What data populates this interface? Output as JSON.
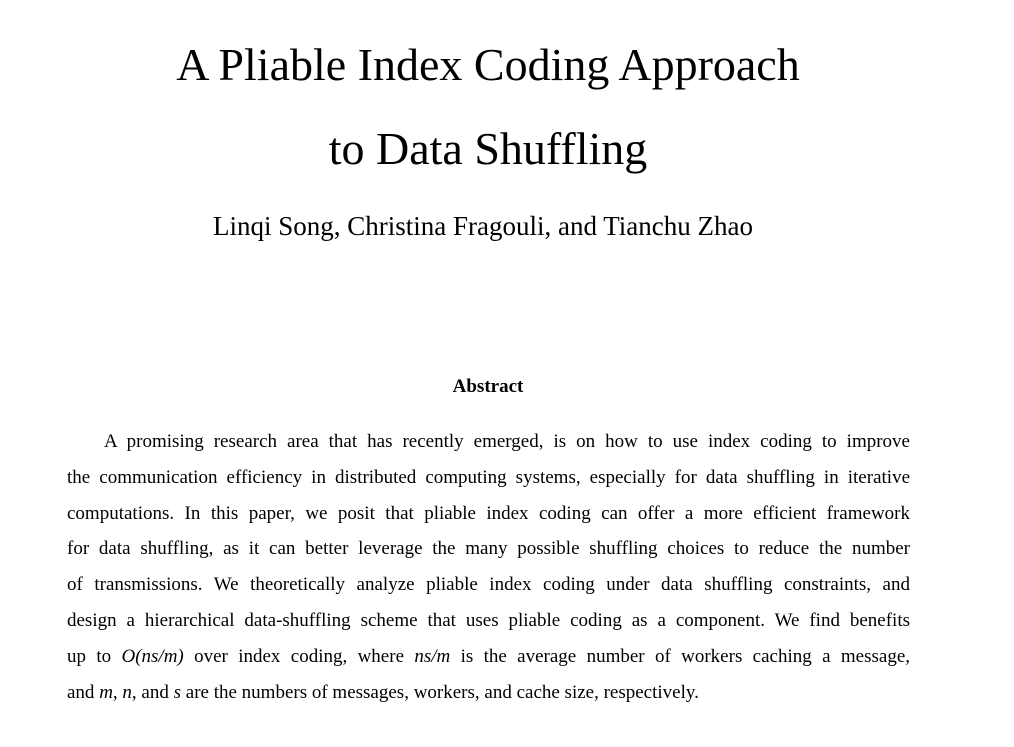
{
  "title": {
    "line1": "A Pliable Index Coding Approach",
    "line2": "to Data Shuffling"
  },
  "authors": "Linqi Song, Christina Fragouli, and Tianchu Zhao",
  "abstract": {
    "heading": "Abstract",
    "lines": [
      "A promising research area that has recently emerged, is on how to use index coding to improve",
      "the communication efficiency in distributed computing systems, especially for data shuffling in iterative",
      "computations. In this paper, we posit that pliable index coding can offer a more efficient framework",
      "for data shuffling, as it can better leverage the many possible shuffling choices to reduce the number",
      "of transmissions. We theoretically analyze pliable index coding under data shuffling constraints, and",
      "design a hierarchical data-shuffling scheme that uses pliable coding as a component. We find benefits"
    ],
    "line7": {
      "t1": "up to ",
      "m1": "O(ns/m)",
      "t2": " over index coding, where ",
      "m2": "ns/m",
      "t3": " is the average number of workers caching a message,"
    },
    "line8": {
      "t1": "and ",
      "m1": "m",
      "t2": ", ",
      "m2": "n",
      "t3": ", and ",
      "m3": "s",
      "t4": " are the numbers of messages, workers, and cache size, respectively."
    }
  }
}
